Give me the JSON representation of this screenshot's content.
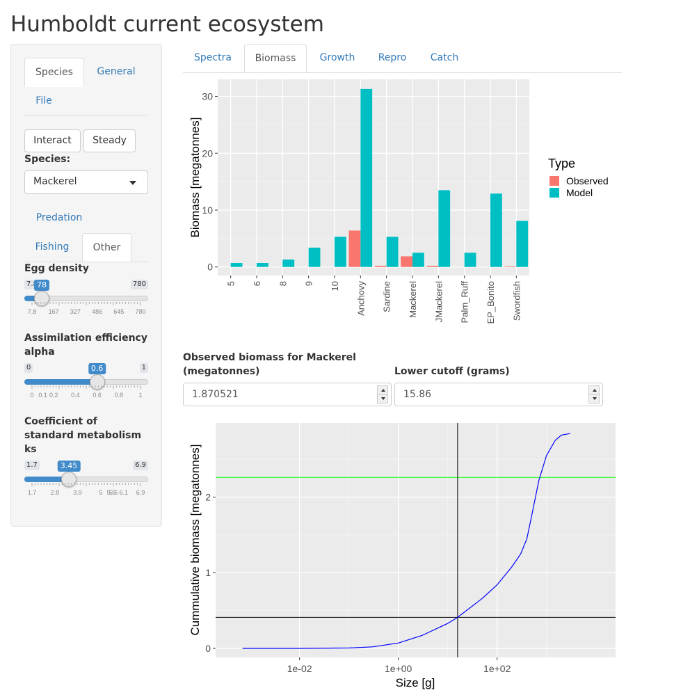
{
  "title": "Humboldt current ecosystem",
  "sidebar": {
    "tabs_top": [
      "Species",
      "General",
      "File"
    ],
    "buttons": {
      "interact": "Interact",
      "steady": "Steady"
    },
    "species_label": "Species:",
    "species_value": "Mackerel",
    "tabs_bottom": [
      "Predation",
      "Fishing",
      "Other"
    ],
    "sliders": [
      {
        "label": "Egg density",
        "min": "7.8",
        "max": "780",
        "value": "78",
        "fraction": 0.09,
        "ticks": [
          "7.8",
          "167",
          "327",
          "486",
          "645",
          "780"
        ]
      },
      {
        "label": "Assimilation efficiency alpha",
        "min": "0",
        "max": "1",
        "value": "0.6",
        "fraction": 0.6,
        "ticks": [
          "0",
          "0.1",
          "0.2",
          "0.4",
          "0.6",
          "0.8",
          "1"
        ]
      },
      {
        "label": "Coefficient of standard metabolism ks",
        "min": "1.7",
        "max": "6.9",
        "value": "3.45",
        "fraction": 0.34,
        "ticks": [
          "1.7",
          "2.8",
          "3.9",
          "5",
          "5.5",
          "5.6",
          "6.1",
          "6.9"
        ]
      }
    ]
  },
  "main": {
    "tabs": [
      "Spectra",
      "Biomass",
      "Growth",
      "Repro",
      "Catch"
    ],
    "active_tab": "Biomass",
    "observed_label": "Observed biomass for Mackerel (megatonnes)",
    "observed_value": "1.870521",
    "cutoff_label": "Lower cutoff (grams)",
    "cutoff_value": "15.86"
  },
  "chart_data": [
    {
      "type": "bar",
      "categories": [
        "5",
        "6",
        "8",
        "9",
        "10",
        "Anchovy",
        "Sardine",
        "Mackerel",
        "JMackerel",
        "Palm_Ruff",
        "EP_Bonito",
        "Swordfish"
      ],
      "series": [
        {
          "name": "Observed",
          "color": "#F8766D",
          "values": [
            0,
            0,
            0,
            0,
            0,
            6.4,
            0.2,
            1.87,
            0.2,
            0,
            0,
            0.1
          ]
        },
        {
          "name": "Model",
          "color": "#00BFC4",
          "values": [
            0.7,
            0.7,
            1.3,
            3.4,
            5.3,
            31.3,
            5.3,
            2.5,
            13.5,
            2.5,
            12.9,
            8.1
          ]
        }
      ],
      "ylabel": "Biomass [megatonnes]",
      "yticks": [
        "0",
        "10",
        "20",
        "30"
      ],
      "ylim": [
        -1.5,
        33
      ],
      "legend_title": "Type",
      "legend_position": "right"
    },
    {
      "type": "line",
      "xlabel": "Size [g]",
      "ylabel": "Cummulative biomass [megatonnes]",
      "x_scale": "log10",
      "xticks": [
        "1e-02",
        "1e+00",
        "1e+02"
      ],
      "yticks": [
        "0",
        "1",
        "2"
      ],
      "xlim": [
        0.0002,
        25000
      ],
      "ylim": [
        -0.12,
        2.98
      ],
      "x": [
        0.0007,
        0.01,
        0.1,
        0.3,
        1,
        3,
        10,
        15.86,
        50,
        100,
        200,
        300,
        400,
        500,
        700,
        1000,
        1500,
        2000,
        3000
      ],
      "y": [
        0,
        0,
        0.005,
        0.02,
        0.07,
        0.17,
        0.33,
        0.41,
        0.66,
        0.84,
        1.08,
        1.25,
        1.45,
        1.75,
        2.22,
        2.55,
        2.75,
        2.82,
        2.84
      ],
      "line_color": "#0000FF",
      "hlines": [
        {
          "y": 2.26,
          "color": "#00FF00"
        },
        {
          "y": 0.41,
          "color": "#000000"
        }
      ],
      "vline": {
        "x": 15.86,
        "color": "#000000"
      }
    }
  ]
}
